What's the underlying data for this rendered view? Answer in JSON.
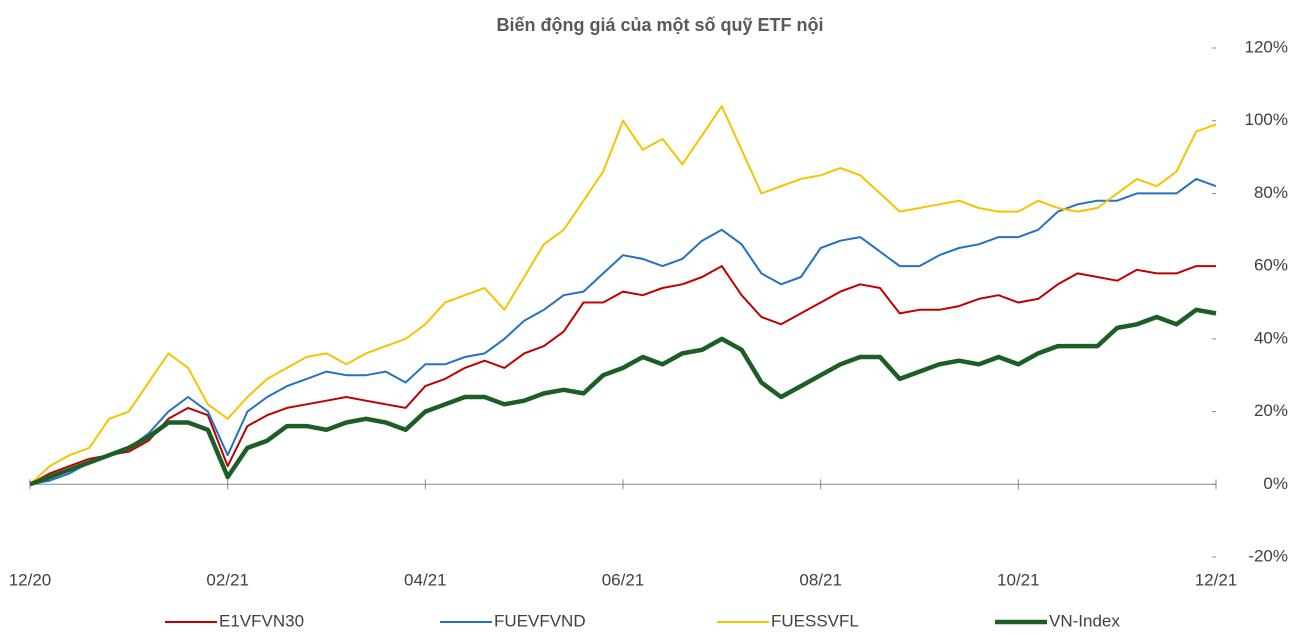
{
  "chart_data": {
    "type": "line",
    "title": "Biến động giá của một số quỹ ETF nội",
    "categories": [
      "12/20",
      null,
      null,
      null,
      null,
      null,
      null,
      null,
      null,
      null,
      "02/21",
      null,
      null,
      null,
      null,
      null,
      null,
      null,
      null,
      null,
      "04/21",
      null,
      null,
      null,
      null,
      null,
      null,
      null,
      null,
      null,
      "06/21",
      null,
      null,
      null,
      null,
      null,
      null,
      null,
      null,
      null,
      "08/21",
      null,
      null,
      null,
      null,
      null,
      null,
      null,
      null,
      null,
      "10/21",
      null,
      null,
      null,
      null,
      null,
      null,
      null,
      null,
      null,
      "12/21"
    ],
    "ylim": [
      -20,
      120
    ],
    "yticks": [
      {
        "value": -20,
        "label": "-20%"
      },
      {
        "value": 0,
        "label": "0%"
      },
      {
        "value": 20,
        "label": "20%"
      },
      {
        "value": 40,
        "label": "40%"
      },
      {
        "value": 60,
        "label": "60%"
      },
      {
        "value": 80,
        "label": "80%"
      },
      {
        "value": 100,
        "label": "100%"
      },
      {
        "value": 120,
        "label": "120%"
      }
    ],
    "legend": "bottom",
    "series": [
      {
        "name": "E1VFVN30",
        "color": "#c00000",
        "width": 2,
        "values": [
          0,
          3,
          5,
          7,
          8,
          9,
          12,
          18,
          21,
          19,
          5,
          16,
          19,
          21,
          22,
          23,
          24,
          23,
          22,
          21,
          27,
          29,
          32,
          34,
          32,
          36,
          38,
          42,
          50,
          50,
          53,
          52,
          54,
          55,
          57,
          60,
          52,
          46,
          44,
          47,
          50,
          53,
          55,
          54,
          47,
          48,
          48,
          49,
          51,
          52,
          50,
          51,
          55,
          58,
          57,
          56,
          59,
          58,
          58,
          60,
          60
        ]
      },
      {
        "name": "FUEVFVND",
        "color": "#2372c2",
        "width": 2,
        "values": [
          0,
          1,
          3,
          6,
          8,
          10,
          14,
          20,
          24,
          20,
          8,
          20,
          24,
          27,
          29,
          31,
          30,
          30,
          31,
          28,
          33,
          33,
          35,
          36,
          40,
          45,
          48,
          52,
          53,
          58,
          63,
          62,
          60,
          62,
          67,
          70,
          66,
          58,
          55,
          57,
          65,
          67,
          68,
          64,
          60,
          60,
          63,
          65,
          66,
          68,
          68,
          70,
          75,
          77,
          78,
          78,
          80,
          80,
          80,
          84,
          82
        ]
      },
      {
        "name": "FUESSVFL",
        "color": "#f5c400",
        "width": 2,
        "values": [
          0,
          5,
          8,
          10,
          18,
          20,
          28,
          36,
          32,
          22,
          18,
          24,
          29,
          32,
          35,
          36,
          33,
          36,
          38,
          40,
          44,
          50,
          52,
          54,
          48,
          57,
          66,
          70,
          78,
          86,
          100,
          92,
          95,
          88,
          96,
          104,
          92,
          80,
          82,
          84,
          85,
          87,
          85,
          80,
          75,
          76,
          77,
          78,
          76,
          75,
          75,
          78,
          76,
          75,
          76,
          80,
          84,
          82,
          86,
          97,
          99
        ]
      },
      {
        "name": "VN-Index",
        "color": "#1c5e25",
        "width": 4.5,
        "values": [
          0,
          2,
          4,
          6,
          8,
          10,
          13,
          17,
          17,
          15,
          2,
          10,
          12,
          16,
          16,
          15,
          17,
          18,
          17,
          15,
          20,
          22,
          24,
          24,
          22,
          23,
          25,
          26,
          25,
          30,
          32,
          35,
          33,
          36,
          37,
          40,
          37,
          28,
          24,
          27,
          30,
          33,
          35,
          35,
          29,
          31,
          33,
          34,
          33,
          35,
          33,
          36,
          38,
          38,
          38,
          43,
          44,
          46,
          44,
          48,
          47
        ]
      }
    ]
  }
}
